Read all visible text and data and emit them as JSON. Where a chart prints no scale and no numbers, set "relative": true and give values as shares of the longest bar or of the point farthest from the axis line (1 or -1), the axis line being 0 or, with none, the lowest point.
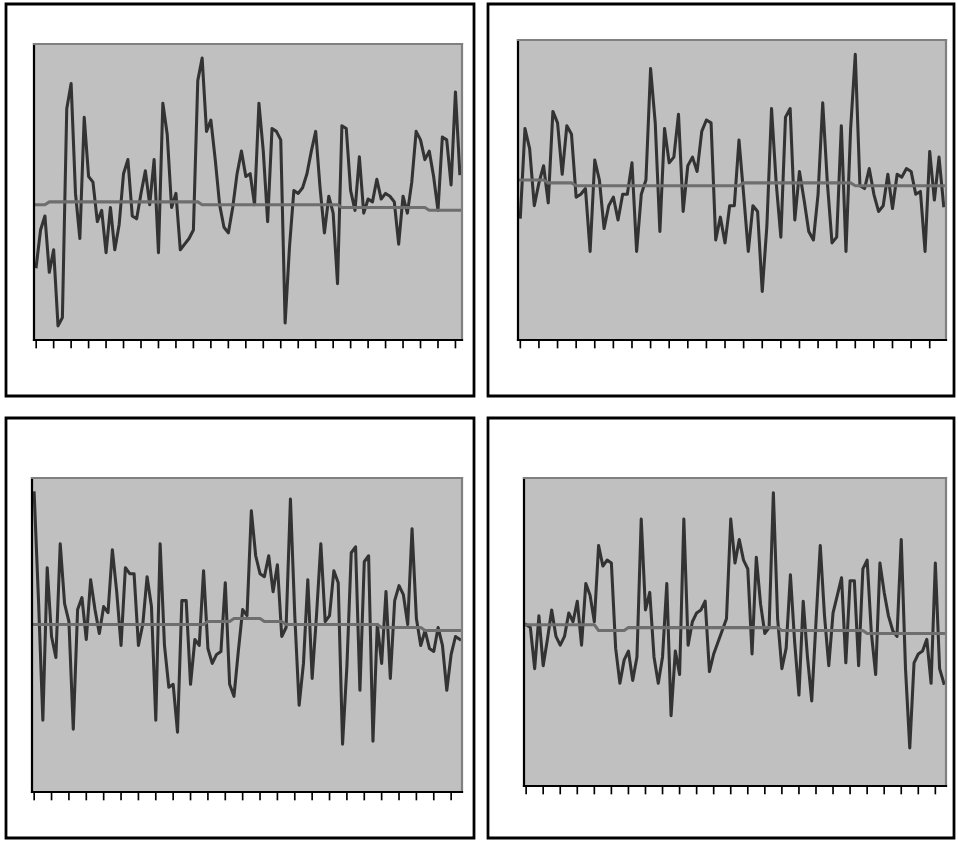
{
  "chart_data": [
    {
      "type": "line",
      "relative": true,
      "grid": false,
      "legend": false,
      "categories": [
        null,
        null,
        null,
        null,
        null,
        null,
        null,
        null,
        null,
        null,
        null,
        null,
        null,
        null,
        null,
        null,
        null,
        null,
        null,
        null,
        null,
        null,
        null,
        null,
        null,
        null,
        null,
        null,
        null,
        null,
        null,
        null,
        null,
        null,
        null,
        null,
        null,
        null,
        null,
        null,
        null,
        null,
        null,
        null,
        null,
        null,
        null,
        null,
        null,
        null,
        null,
        null,
        null,
        null,
        null,
        null,
        null,
        null,
        null,
        null,
        null,
        null,
        null,
        null,
        null,
        null,
        null,
        null,
        null,
        null,
        null,
        null,
        null,
        null,
        null,
        null,
        null,
        null,
        null,
        null,
        null,
        null,
        null,
        null,
        null,
        null,
        null,
        null,
        null,
        null,
        null,
        null,
        null,
        null,
        null,
        null,
        null,
        null
      ],
      "series": [
        {
          "color": "#333333",
          "values": [
            0.26,
            0.39,
            0.44,
            0.24,
            0.32,
            0.05,
            0.08,
            0.82,
            0.91,
            0.52,
            0.36,
            0.79,
            0.58,
            0.56,
            0.42,
            0.46,
            0.31,
            0.47,
            0.32,
            0.41,
            0.59,
            0.64,
            0.44,
            0.43,
            0.52,
            0.6,
            0.48,
            0.64,
            0.31,
            0.84,
            0.73,
            0.47,
            0.52,
            0.32,
            0.34,
            0.36,
            0.39,
            0.92,
            1.0,
            0.74,
            0.78,
            0.64,
            0.48,
            0.4,
            0.38,
            0.47,
            0.59,
            0.67,
            0.58,
            0.59,
            0.48,
            0.84,
            0.67,
            0.42,
            0.75,
            0.74,
            0.71,
            0.06,
            0.33,
            0.53,
            0.52,
            0.54,
            0.59,
            0.67,
            0.74,
            0.54,
            0.38,
            0.51,
            0.45,
            0.2,
            0.76,
            0.75,
            0.53,
            0.46,
            0.65,
            0.45,
            0.5,
            0.49,
            0.57,
            0.5,
            0.52,
            0.51,
            0.49,
            0.34,
            0.51,
            0.45,
            0.56,
            0.74,
            0.71,
            0.64,
            0.67,
            0.58,
            0.46,
            0.72,
            0.71,
            0.55,
            0.88,
            0.59
          ]
        },
        {
          "color": "#6e6e6e",
          "values": [
            0.48,
            0.48,
            0.48,
            0.49,
            0.49,
            0.49,
            0.49,
            0.49,
            0.49,
            0.49,
            0.49,
            0.49,
            0.49,
            0.49,
            0.49,
            0.49,
            0.49,
            0.49,
            0.49,
            0.49,
            0.49,
            0.49,
            0.49,
            0.49,
            0.49,
            0.49,
            0.49,
            0.49,
            0.49,
            0.49,
            0.49,
            0.49,
            0.49,
            0.49,
            0.49,
            0.49,
            0.49,
            0.49,
            0.48,
            0.48,
            0.48,
            0.48,
            0.48,
            0.48,
            0.48,
            0.48,
            0.48,
            0.48,
            0.48,
            0.48,
            0.48,
            0.48,
            0.48,
            0.48,
            0.48,
            0.48,
            0.48,
            0.48,
            0.48,
            0.48,
            0.48,
            0.48,
            0.48,
            0.48,
            0.48,
            0.48,
            0.48,
            0.48,
            0.48,
            0.48,
            0.47,
            0.47,
            0.47,
            0.47,
            0.47,
            0.47,
            0.47,
            0.47,
            0.47,
            0.47,
            0.47,
            0.47,
            0.47,
            0.47,
            0.47,
            0.47,
            0.47,
            0.47,
            0.47,
            0.47,
            0.46,
            0.46,
            0.46,
            0.46,
            0.46,
            0.46,
            0.46,
            0.46
          ]
        }
      ]
    },
    {
      "type": "line",
      "relative": true,
      "grid": false,
      "legend": false,
      "categories": [
        null,
        null,
        null,
        null,
        null,
        null,
        null,
        null,
        null,
        null,
        null,
        null,
        null,
        null,
        null,
        null,
        null,
        null,
        null,
        null,
        null,
        null,
        null,
        null,
        null,
        null,
        null,
        null,
        null,
        null,
        null,
        null,
        null,
        null,
        null,
        null,
        null,
        null,
        null,
        null,
        null,
        null,
        null,
        null,
        null,
        null,
        null,
        null,
        null,
        null,
        null,
        null,
        null,
        null,
        null,
        null,
        null,
        null,
        null,
        null,
        null,
        null,
        null,
        null,
        null,
        null,
        null,
        null,
        null,
        null,
        null,
        null,
        null,
        null,
        null,
        null,
        null,
        null,
        null,
        null,
        null,
        null,
        null,
        null,
        null,
        null,
        null,
        null,
        null,
        null,
        null,
        null
      ],
      "series": [
        {
          "color": "#333333",
          "values": [
            0.43,
            0.74,
            0.67,
            0.47,
            0.55,
            0.61,
            0.48,
            0.8,
            0.76,
            0.58,
            0.75,
            0.72,
            0.5,
            0.51,
            0.53,
            0.31,
            0.63,
            0.56,
            0.39,
            0.47,
            0.5,
            0.42,
            0.51,
            0.51,
            0.62,
            0.31,
            0.51,
            0.56,
            0.95,
            0.76,
            0.38,
            0.74,
            0.62,
            0.64,
            0.79,
            0.45,
            0.61,
            0.64,
            0.59,
            0.73,
            0.77,
            0.76,
            0.35,
            0.43,
            0.34,
            0.47,
            0.47,
            0.7,
            0.51,
            0.31,
            0.47,
            0.45,
            0.17,
            0.4,
            0.81,
            0.55,
            0.36,
            0.78,
            0.81,
            0.42,
            0.59,
            0.49,
            0.38,
            0.35,
            0.51,
            0.83,
            0.55,
            0.34,
            0.36,
            0.75,
            0.31,
            0.74,
            1.0,
            0.54,
            0.53,
            0.6,
            0.51,
            0.45,
            0.47,
            0.58,
            0.46,
            0.58,
            0.57,
            0.6,
            0.59,
            0.51,
            0.52,
            0.31,
            0.66,
            0.49,
            0.64,
            0.47
          ]
        },
        {
          "color": "#6e6e6e",
          "values": [
            0.56,
            0.56,
            0.56,
            0.56,
            0.56,
            0.56,
            0.55,
            0.55,
            0.55,
            0.55,
            0.55,
            0.55,
            0.54,
            0.54,
            0.54,
            0.54,
            0.54,
            0.54,
            0.54,
            0.54,
            0.54,
            0.54,
            0.54,
            0.54,
            0.54,
            0.54,
            0.54,
            0.54,
            0.54,
            0.54,
            0.54,
            0.54,
            0.54,
            0.54,
            0.54,
            0.54,
            0.54,
            0.54,
            0.54,
            0.54,
            0.54,
            0.54,
            0.54,
            0.54,
            0.54,
            0.54,
            0.54,
            0.54,
            0.55,
            0.55,
            0.55,
            0.55,
            0.55,
            0.55,
            0.55,
            0.55,
            0.55,
            0.55,
            0.55,
            0.55,
            0.55,
            0.55,
            0.55,
            0.55,
            0.55,
            0.55,
            0.55,
            0.55,
            0.55,
            0.55,
            0.55,
            0.55,
            0.54,
            0.54,
            0.54,
            0.54,
            0.54,
            0.54,
            0.54,
            0.54,
            0.54,
            0.54,
            0.54,
            0.54,
            0.54,
            0.54,
            0.54,
            0.54,
            0.54,
            0.54,
            0.54,
            0.54
          ]
        }
      ]
    },
    {
      "type": "line",
      "relative": true,
      "grid": false,
      "legend": false,
      "categories": [
        null,
        null,
        null,
        null,
        null,
        null,
        null,
        null,
        null,
        null,
        null,
        null,
        null,
        null,
        null,
        null,
        null,
        null,
        null,
        null,
        null,
        null,
        null,
        null,
        null,
        null,
        null,
        null,
        null,
        null,
        null,
        null,
        null,
        null,
        null,
        null,
        null,
        null,
        null,
        null,
        null,
        null,
        null,
        null,
        null,
        null,
        null,
        null,
        null,
        null,
        null,
        null,
        null,
        null,
        null,
        null,
        null,
        null,
        null,
        null,
        null,
        null,
        null,
        null,
        null,
        null,
        null,
        null,
        null,
        null,
        null,
        null,
        null,
        null,
        null,
        null,
        null,
        null,
        null,
        null,
        null,
        null,
        null,
        null,
        null,
        null,
        null,
        null,
        null,
        null,
        null,
        null,
        null,
        null,
        null,
        null,
        null,
        null,
        null
      ],
      "series": [
        {
          "color": "#333333",
          "values": [
            1.0,
            0.64,
            0.24,
            0.75,
            0.52,
            0.45,
            0.83,
            0.63,
            0.57,
            0.21,
            0.61,
            0.65,
            0.51,
            0.71,
            0.61,
            0.53,
            0.62,
            0.6,
            0.81,
            0.67,
            0.49,
            0.75,
            0.73,
            0.73,
            0.49,
            0.56,
            0.72,
            0.62,
            0.24,
            0.83,
            0.49,
            0.35,
            0.36,
            0.2,
            0.64,
            0.64,
            0.36,
            0.51,
            0.49,
            0.74,
            0.48,
            0.43,
            0.46,
            0.47,
            0.7,
            0.36,
            0.32,
            0.47,
            0.61,
            0.59,
            0.94,
            0.79,
            0.73,
            0.72,
            0.79,
            0.67,
            0.76,
            0.52,
            0.55,
            0.98,
            0.59,
            0.29,
            0.43,
            0.71,
            0.38,
            0.59,
            0.83,
            0.57,
            0.59,
            0.74,
            0.7,
            0.16,
            0.42,
            0.8,
            0.82,
            0.34,
            0.77,
            0.79,
            0.17,
            0.56,
            0.43,
            0.67,
            0.38,
            0.64,
            0.69,
            0.66,
            0.56,
            0.88,
            0.58,
            0.49,
            0.54,
            0.48,
            0.47,
            0.55,
            0.49,
            0.34,
            0.46,
            0.52,
            0.51
          ]
        },
        {
          "color": "#6e6e6e",
          "values": [
            0.56,
            0.56,
            0.56,
            0.56,
            0.56,
            0.56,
            0.56,
            0.56,
            0.56,
            0.56,
            0.56,
            0.56,
            0.56,
            0.56,
            0.56,
            0.56,
            0.56,
            0.56,
            0.56,
            0.56,
            0.56,
            0.56,
            0.56,
            0.56,
            0.56,
            0.56,
            0.56,
            0.56,
            0.56,
            0.56,
            0.56,
            0.56,
            0.56,
            0.56,
            0.56,
            0.56,
            0.56,
            0.56,
            0.56,
            0.56,
            0.57,
            0.57,
            0.57,
            0.57,
            0.57,
            0.57,
            0.58,
            0.58,
            0.58,
            0.58,
            0.58,
            0.58,
            0.58,
            0.57,
            0.57,
            0.57,
            0.57,
            0.57,
            0.56,
            0.56,
            0.56,
            0.56,
            0.56,
            0.56,
            0.56,
            0.56,
            0.56,
            0.56,
            0.56,
            0.56,
            0.56,
            0.56,
            0.56,
            0.56,
            0.56,
            0.56,
            0.56,
            0.56,
            0.56,
            0.56,
            0.55,
            0.55,
            0.55,
            0.55,
            0.55,
            0.55,
            0.55,
            0.55,
            0.55,
            0.55,
            0.54,
            0.54,
            0.54,
            0.54,
            0.54,
            0.54,
            0.54,
            0.54,
            0.54
          ]
        }
      ]
    },
    {
      "type": "line",
      "relative": true,
      "grid": false,
      "legend": false,
      "categories": [
        null,
        null,
        null,
        null,
        null,
        null,
        null,
        null,
        null,
        null,
        null,
        null,
        null,
        null,
        null,
        null,
        null,
        null,
        null,
        null,
        null,
        null,
        null,
        null,
        null,
        null,
        null,
        null,
        null,
        null,
        null,
        null,
        null,
        null,
        null,
        null,
        null,
        null,
        null,
        null,
        null,
        null,
        null,
        null,
        null,
        null,
        null,
        null,
        null,
        null,
        null,
        null,
        null,
        null,
        null,
        null,
        null,
        null,
        null,
        null,
        null,
        null,
        null,
        null,
        null,
        null,
        null,
        null,
        null,
        null,
        null,
        null,
        null,
        null,
        null,
        null,
        null,
        null,
        null,
        null,
        null,
        null,
        null,
        null,
        null,
        null,
        null,
        null,
        null,
        null,
        null,
        null,
        null,
        null,
        null,
        null,
        null,
        null,
        null
      ],
      "series": [
        {
          "color": "#333333",
          "values": [
            0.55,
            0.54,
            0.4,
            0.58,
            0.41,
            0.5,
            0.6,
            0.51,
            0.48,
            0.51,
            0.59,
            0.56,
            0.63,
            0.48,
            0.69,
            0.65,
            0.56,
            0.82,
            0.75,
            0.77,
            0.76,
            0.47,
            0.35,
            0.43,
            0.46,
            0.36,
            0.44,
            0.91,
            0.6,
            0.66,
            0.44,
            0.35,
            0.44,
            0.69,
            0.24,
            0.46,
            0.38,
            0.91,
            0.48,
            0.56,
            0.59,
            0.6,
            0.63,
            0.39,
            0.45,
            0.49,
            0.53,
            0.57,
            0.91,
            0.76,
            0.84,
            0.77,
            0.74,
            0.45,
            0.78,
            0.62,
            0.52,
            0.54,
            1.0,
            0.57,
            0.4,
            0.47,
            0.72,
            0.49,
            0.31,
            0.63,
            0.44,
            0.29,
            0.56,
            0.82,
            0.58,
            0.41,
            0.59,
            0.65,
            0.71,
            0.42,
            0.7,
            0.7,
            0.41,
            0.74,
            0.77,
            0.52,
            0.38,
            0.76,
            0.66,
            0.58,
            0.53,
            0.51,
            0.84,
            0.4,
            0.13,
            0.42,
            0.45,
            0.46,
            0.5,
            0.35,
            0.76,
            0.4,
            0.35
          ]
        },
        {
          "color": "#6e6e6e",
          "values": [
            0.55,
            0.55,
            0.55,
            0.55,
            0.55,
            0.55,
            0.55,
            0.55,
            0.55,
            0.55,
            0.55,
            0.55,
            0.55,
            0.55,
            0.55,
            0.55,
            0.55,
            0.53,
            0.53,
            0.53,
            0.53,
            0.53,
            0.53,
            0.53,
            0.54,
            0.54,
            0.54,
            0.54,
            0.54,
            0.54,
            0.54,
            0.54,
            0.54,
            0.54,
            0.54,
            0.54,
            0.54,
            0.54,
            0.54,
            0.54,
            0.54,
            0.54,
            0.54,
            0.54,
            0.54,
            0.54,
            0.54,
            0.54,
            0.54,
            0.54,
            0.54,
            0.54,
            0.54,
            0.54,
            0.54,
            0.54,
            0.54,
            0.54,
            0.54,
            0.54,
            0.53,
            0.53,
            0.53,
            0.53,
            0.53,
            0.53,
            0.53,
            0.53,
            0.53,
            0.53,
            0.53,
            0.53,
            0.53,
            0.53,
            0.53,
            0.53,
            0.53,
            0.53,
            0.53,
            0.53,
            0.52,
            0.52,
            0.52,
            0.52,
            0.52,
            0.52,
            0.52,
            0.52,
            0.52,
            0.52,
            0.52,
            0.52,
            0.52,
            0.52,
            0.52,
            0.52,
            0.52,
            0.52,
            0.52
          ]
        }
      ]
    }
  ]
}
